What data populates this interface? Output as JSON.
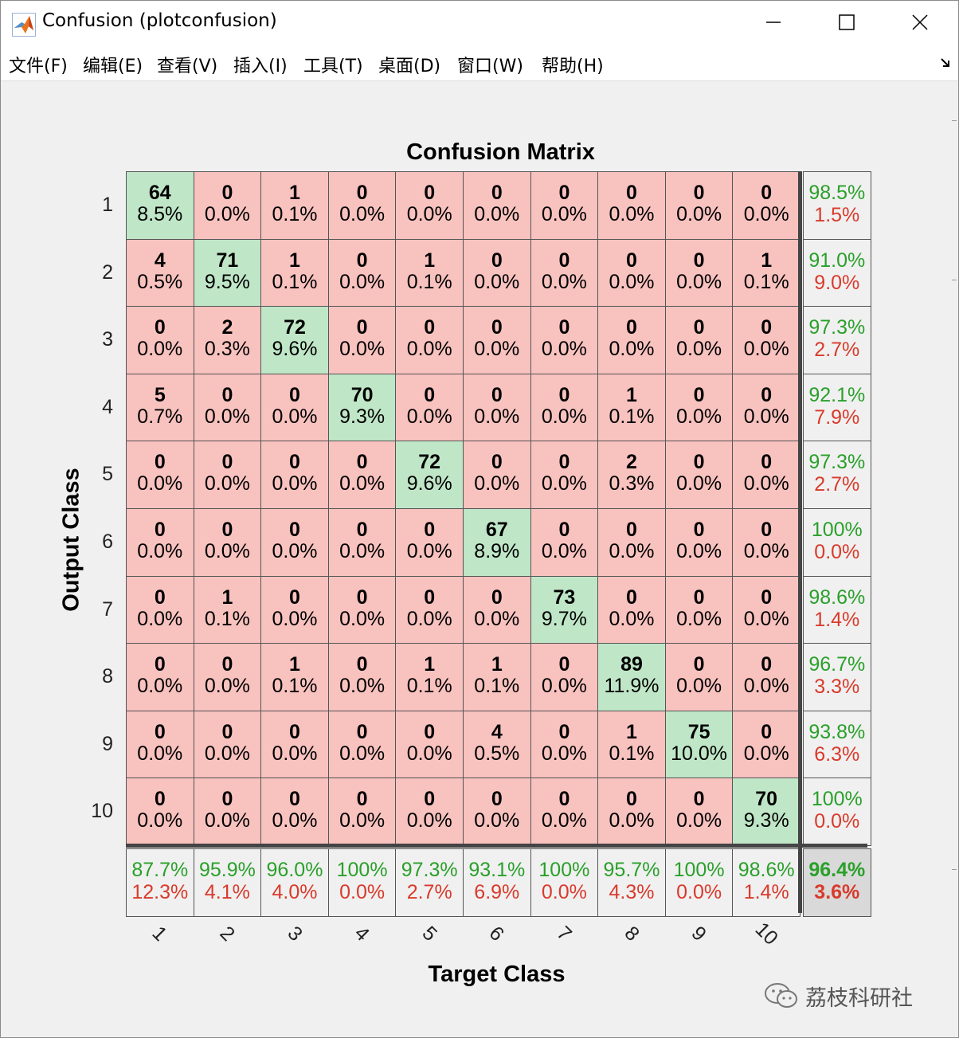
{
  "window": {
    "title": "Confusion (plotconfusion)",
    "icon": "matlab-icon"
  },
  "menu": [
    "文件(F)",
    "编辑(E)",
    "查看(V)",
    "插入(I)",
    "工具(T)",
    "桌面(D)",
    "窗口(W)",
    "帮助(H)"
  ],
  "colors": {
    "correct_cell": "#bfe6c7",
    "error_cell": "#f8c2bf",
    "summary_cell": "#f0f0f0",
    "corner_cell": "#d9d9d9",
    "green_text": "#2aa02a",
    "red_text": "#d93a2b"
  },
  "chart_data": {
    "type": "table",
    "title": "Confusion Matrix",
    "xlabel": "Target Class",
    "ylabel": "Output Class",
    "row_labels": [
      "1",
      "2",
      "3",
      "4",
      "5",
      "6",
      "7",
      "8",
      "9",
      "10"
    ],
    "col_labels": [
      "1",
      "2",
      "3",
      "4",
      "5",
      "6",
      "7",
      "8",
      "9",
      "10"
    ],
    "counts": [
      [
        64,
        0,
        1,
        0,
        0,
        0,
        0,
        0,
        0,
        0
      ],
      [
        4,
        71,
        1,
        0,
        1,
        0,
        0,
        0,
        0,
        1
      ],
      [
        0,
        2,
        72,
        0,
        0,
        0,
        0,
        0,
        0,
        0
      ],
      [
        5,
        0,
        0,
        70,
        0,
        0,
        0,
        1,
        0,
        0
      ],
      [
        0,
        0,
        0,
        0,
        72,
        0,
        0,
        2,
        0,
        0
      ],
      [
        0,
        0,
        0,
        0,
        0,
        67,
        0,
        0,
        0,
        0
      ],
      [
        0,
        1,
        0,
        0,
        0,
        0,
        73,
        0,
        0,
        0
      ],
      [
        0,
        0,
        1,
        0,
        1,
        1,
        0,
        89,
        0,
        0
      ],
      [
        0,
        0,
        0,
        0,
        0,
        4,
        0,
        1,
        75,
        0
      ],
      [
        0,
        0,
        0,
        0,
        0,
        0,
        0,
        0,
        0,
        70
      ]
    ],
    "percents": [
      [
        "8.5%",
        "0.0%",
        "0.1%",
        "0.0%",
        "0.0%",
        "0.0%",
        "0.0%",
        "0.0%",
        "0.0%",
        "0.0%"
      ],
      [
        "0.5%",
        "9.5%",
        "0.1%",
        "0.0%",
        "0.1%",
        "0.0%",
        "0.0%",
        "0.0%",
        "0.0%",
        "0.1%"
      ],
      [
        "0.0%",
        "0.3%",
        "9.6%",
        "0.0%",
        "0.0%",
        "0.0%",
        "0.0%",
        "0.0%",
        "0.0%",
        "0.0%"
      ],
      [
        "0.7%",
        "0.0%",
        "0.0%",
        "9.3%",
        "0.0%",
        "0.0%",
        "0.0%",
        "0.1%",
        "0.0%",
        "0.0%"
      ],
      [
        "0.0%",
        "0.0%",
        "0.0%",
        "0.0%",
        "9.6%",
        "0.0%",
        "0.0%",
        "0.3%",
        "0.0%",
        "0.0%"
      ],
      [
        "0.0%",
        "0.0%",
        "0.0%",
        "0.0%",
        "0.0%",
        "8.9%",
        "0.0%",
        "0.0%",
        "0.0%",
        "0.0%"
      ],
      [
        "0.0%",
        "0.1%",
        "0.0%",
        "0.0%",
        "0.0%",
        "0.0%",
        "9.7%",
        "0.0%",
        "0.0%",
        "0.0%"
      ],
      [
        "0.0%",
        "0.0%",
        "0.1%",
        "0.0%",
        "0.1%",
        "0.1%",
        "0.0%",
        "11.9%",
        "0.0%",
        "0.0%"
      ],
      [
        "0.0%",
        "0.0%",
        "0.0%",
        "0.0%",
        "0.0%",
        "0.5%",
        "0.0%",
        "0.1%",
        "10.0%",
        "0.0%"
      ],
      [
        "0.0%",
        "0.0%",
        "0.0%",
        "0.0%",
        "0.0%",
        "0.0%",
        "0.0%",
        "0.0%",
        "0.0%",
        "9.3%"
      ]
    ],
    "row_summary": [
      [
        "98.5%",
        "1.5%"
      ],
      [
        "91.0%",
        "9.0%"
      ],
      [
        "97.3%",
        "2.7%"
      ],
      [
        "92.1%",
        "7.9%"
      ],
      [
        "97.3%",
        "2.7%"
      ],
      [
        "100%",
        "0.0%"
      ],
      [
        "98.6%",
        "1.4%"
      ],
      [
        "96.7%",
        "3.3%"
      ],
      [
        "93.8%",
        "6.3%"
      ],
      [
        "100%",
        "0.0%"
      ]
    ],
    "col_summary": [
      [
        "87.7%",
        "12.3%"
      ],
      [
        "95.9%",
        "4.1%"
      ],
      [
        "96.0%",
        "4.0%"
      ],
      [
        "100%",
        "0.0%"
      ],
      [
        "97.3%",
        "2.7%"
      ],
      [
        "93.1%",
        "6.9%"
      ],
      [
        "100%",
        "0.0%"
      ],
      [
        "95.7%",
        "4.3%"
      ],
      [
        "100%",
        "0.0%"
      ],
      [
        "98.6%",
        "1.4%"
      ]
    ],
    "overall": [
      "96.4%",
      "3.6%"
    ]
  },
  "watermark": {
    "text": "荔枝科研社",
    "icon": "wechat-icon"
  }
}
